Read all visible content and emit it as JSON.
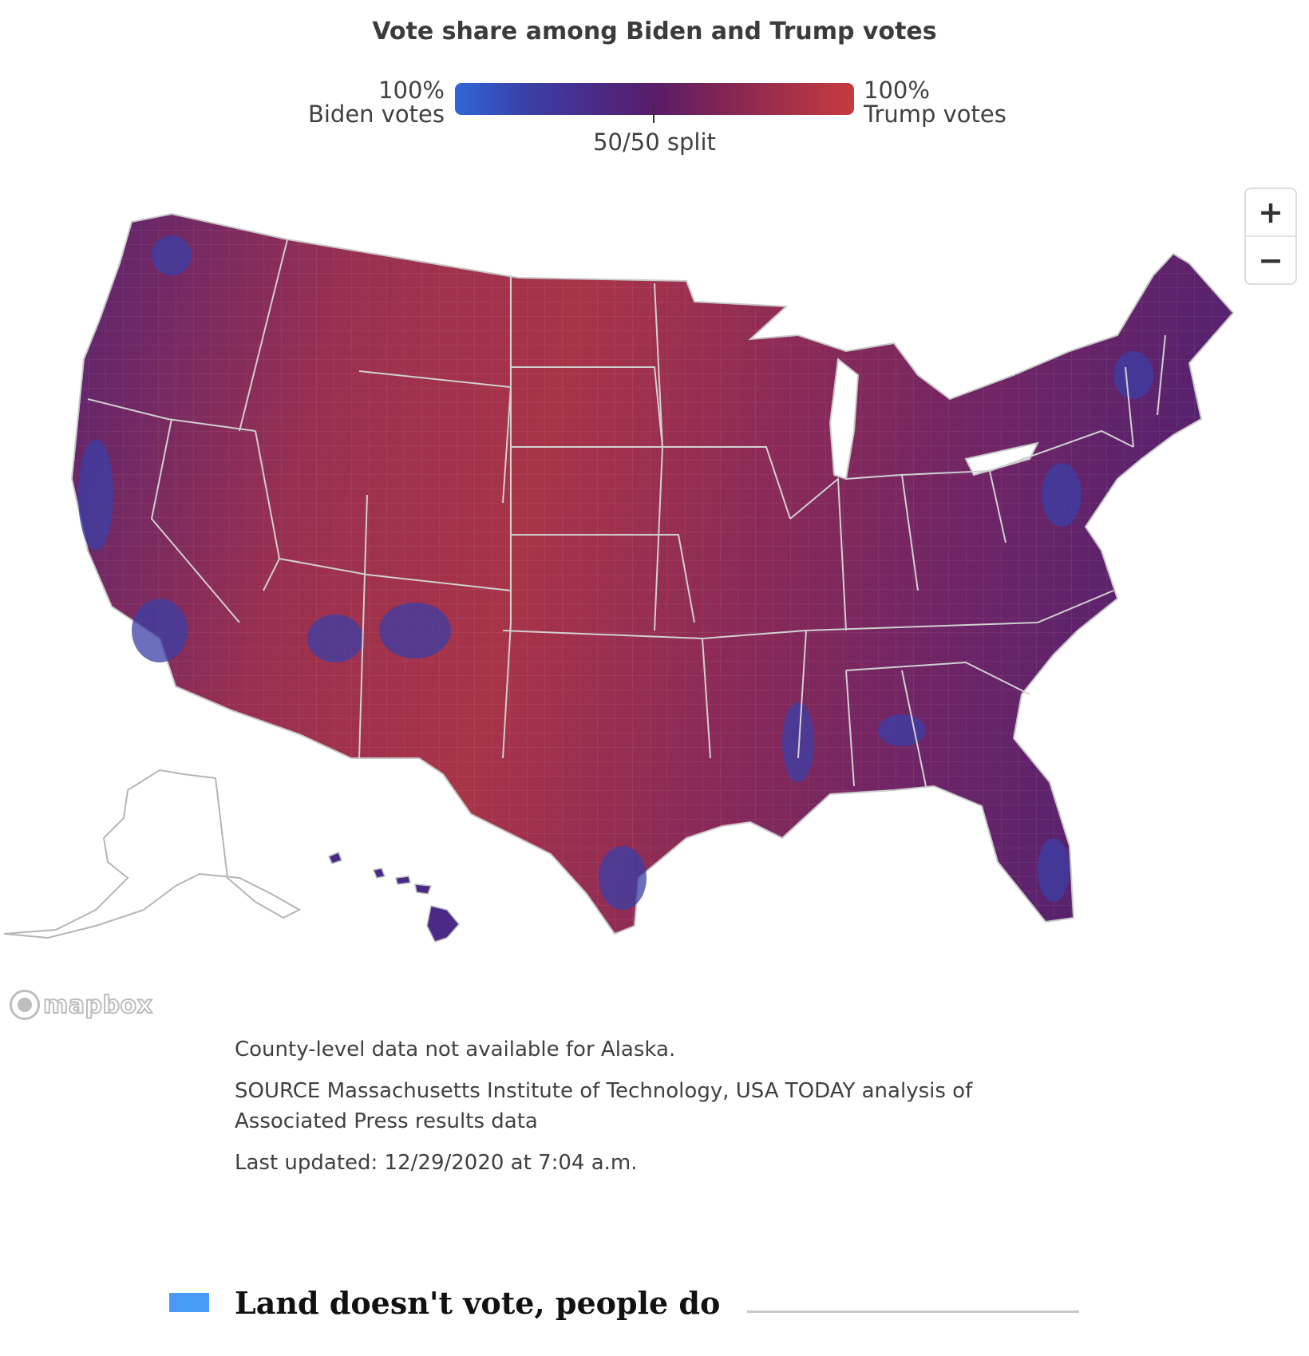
{
  "title": "Vote share among Biden and Trump votes",
  "legend": {
    "left_pct": "100%",
    "left_label": "Biden votes",
    "right_pct": "100%",
    "right_label": "Trump votes",
    "mid_label": "50/50 split",
    "colors": {
      "biden": "#2f67d6",
      "split": "#5a1c6a",
      "trump": "#c53b3e"
    }
  },
  "map": {
    "zoom_in": "+",
    "zoom_out": "−",
    "attribution": "mapbox"
  },
  "notes": {
    "alaska": "County-level data not available for Alaska.",
    "source": "SOURCE Massachusetts Institute of Technology, USA TODAY analysis of Associated Press results data",
    "updated": "Last updated: 12/29/2020 at 7:04 a.m."
  },
  "section": {
    "heading": "Land doesn't vote, people do",
    "accent": "#4a9bf5"
  }
}
